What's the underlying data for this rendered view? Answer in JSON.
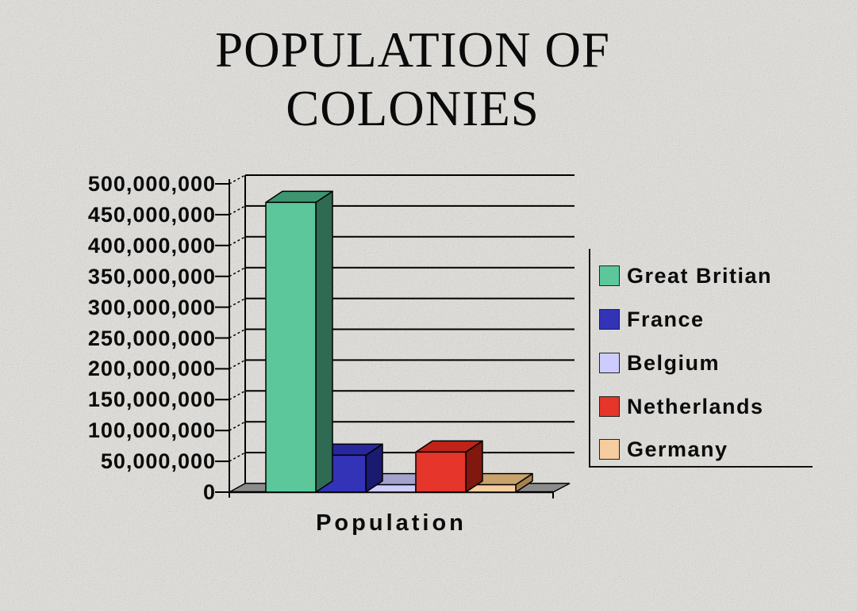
{
  "title": {
    "line1": "POPULATION OF",
    "line2": "COLONIES"
  },
  "chart_data": {
    "type": "bar",
    "projection": "3d",
    "title": "POPULATION OF COLONIES",
    "xlabel": "Population",
    "categories": [
      "Great Britian",
      "France",
      "Belgium",
      "Netherlands",
      "Germany"
    ],
    "values": [
      470000000,
      60000000,
      12000000,
      65000000,
      12000000
    ],
    "ylim": [
      0,
      500000000
    ],
    "ytick_step": 50000000,
    "ytick_labels": [
      "0",
      "50,000,000",
      "100,000,000",
      "150,000,000",
      "200,000,000",
      "250,000,000",
      "300,000,000",
      "350,000,000",
      "400,000,000",
      "450,000,000",
      "500,000,000"
    ],
    "grid": true,
    "legend_position": "right",
    "bar_colors": [
      {
        "front": "#5CC79A",
        "top": "#3E9671",
        "side": "#2E6B52"
      },
      {
        "front": "#3333B8",
        "top": "#28289E",
        "side": "#1A1A70"
      },
      {
        "front": "#CCCCFF",
        "top": "#A3A3CC",
        "side": "#8888B8"
      },
      {
        "front": "#E6352A",
        "top": "#C02318",
        "side": "#801810"
      },
      {
        "front": "#F5CD9E",
        "top": "#C9A26D",
        "side": "#A5814F"
      }
    ],
    "paint_order": [
      2,
      4,
      1,
      3,
      0
    ],
    "axis_color": "#000000",
    "floor_color": "#8C8C8C",
    "text_color": "#0B0B0B"
  },
  "background": {
    "base_color": "#E0DFDB"
  }
}
